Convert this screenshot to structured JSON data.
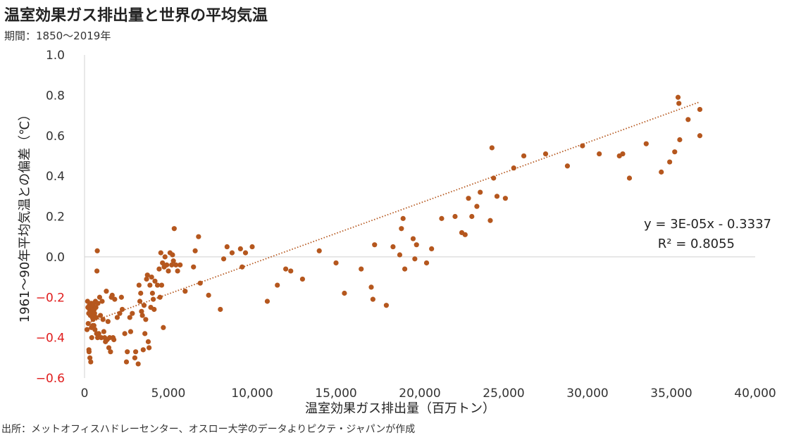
{
  "title": "温室効果ガス排出量と世界の平均気温",
  "subtitle": "期間：1850〜2019年",
  "source": "出所：メットオフィスハドレーセンター、オスロー大学のデータよりピクテ・ジャパンが作成",
  "chart_data": {
    "type": "scatter",
    "xlabel": "温室効果ガス排出量（百万トン）",
    "ylabel": "1961〜90年平均気温との偏差（℃）",
    "xlim": [
      0,
      40000
    ],
    "ylim": [
      -0.6,
      1.0
    ],
    "x_ticks": [
      0,
      5000,
      10000,
      15000,
      20000,
      25000,
      30000,
      35000,
      40000
    ],
    "x_tick_labels": [
      "0",
      "5,000",
      "10,000",
      "15,000",
      "20,000",
      "25,000",
      "30,000",
      "35,000",
      "40,000"
    ],
    "y_ticks": [
      1.0,
      0.8,
      0.6,
      0.4,
      0.2,
      0.0,
      -0.2,
      -0.4,
      -0.6
    ],
    "y_tick_labels": [
      "1.0",
      "0.8",
      "0.6",
      "0.4",
      "0.2",
      "0.0",
      "−0.2",
      "−0.4",
      "−0.6"
    ],
    "grid": "horizontal zero line only",
    "point_color": "#b5571e",
    "negative_tick_color": "#e01e1e",
    "trendline": {
      "style": "dotted",
      "slope": 3e-05,
      "intercept": -0.3337,
      "equation": "y = 3E-05x - 0.3337",
      "r2": "R² = 0.8055",
      "x_range": [
        200,
        36700
      ]
    },
    "points": [
      [
        150,
        -0.36
      ],
      [
        180,
        -0.22
      ],
      [
        200,
        -0.25
      ],
      [
        220,
        -0.33
      ],
      [
        250,
        -0.28
      ],
      [
        260,
        -0.46
      ],
      [
        270,
        -0.47
      ],
      [
        290,
        -0.24
      ],
      [
        300,
        -0.26
      ],
      [
        320,
        -0.5
      ],
      [
        330,
        -0.24
      ],
      [
        350,
        -0.29
      ],
      [
        360,
        -0.26
      ],
      [
        370,
        -0.52
      ],
      [
        380,
        -0.27
      ],
      [
        400,
        -0.23
      ],
      [
        410,
        -0.35
      ],
      [
        420,
        -0.28
      ],
      [
        430,
        -0.4
      ],
      [
        450,
        -0.24
      ],
      [
        460,
        -0.27
      ],
      [
        470,
        -0.3
      ],
      [
        480,
        -0.24
      ],
      [
        490,
        -0.34
      ],
      [
        500,
        -0.25
      ],
      [
        510,
        -0.31
      ],
      [
        520,
        -0.26
      ],
      [
        540,
        -0.23
      ],
      [
        560,
        -0.34
      ],
      [
        580,
        -0.26
      ],
      [
        600,
        -0.28
      ],
      [
        620,
        -0.36
      ],
      [
        650,
        -0.22
      ],
      [
        680,
        -0.25
      ],
      [
        700,
        -0.3
      ],
      [
        720,
        -0.38
      ],
      [
        740,
        -0.07
      ],
      [
        760,
        0.03
      ],
      [
        780,
        -0.4
      ],
      [
        800,
        -0.23
      ],
      [
        850,
        -0.38
      ],
      [
        900,
        -0.2
      ],
      [
        950,
        -0.29
      ],
      [
        1000,
        -0.4
      ],
      [
        1050,
        -0.22
      ],
      [
        1100,
        -0.31
      ],
      [
        1150,
        -0.37
      ],
      [
        1200,
        -0.4
      ],
      [
        1250,
        -0.42
      ],
      [
        1300,
        -0.17
      ],
      [
        1350,
        -0.41
      ],
      [
        1400,
        -0.32
      ],
      [
        1450,
        -0.45
      ],
      [
        1500,
        -0.4
      ],
      [
        1550,
        -0.47
      ],
      [
        1600,
        -0.2
      ],
      [
        1650,
        -0.19
      ],
      [
        1700,
        -0.4
      ],
      [
        1750,
        -0.41
      ],
      [
        1800,
        -0.21
      ],
      [
        1950,
        -0.3
      ],
      [
        2100,
        -0.28
      ],
      [
        2200,
        -0.2
      ],
      [
        2250,
        -0.26
      ],
      [
        2400,
        -0.38
      ],
      [
        2500,
        -0.52
      ],
      [
        2550,
        -0.47
      ],
      [
        2700,
        -0.3
      ],
      [
        2750,
        -0.37
      ],
      [
        2850,
        -0.28
      ],
      [
        3000,
        -0.5
      ],
      [
        3050,
        -0.47
      ],
      [
        3200,
        -0.53
      ],
      [
        3250,
        -0.14
      ],
      [
        3300,
        -0.22
      ],
      [
        3350,
        -0.18
      ],
      [
        3400,
        -0.27
      ],
      [
        3450,
        -0.29
      ],
      [
        3500,
        -0.46
      ],
      [
        3550,
        -0.24
      ],
      [
        3600,
        -0.38
      ],
      [
        3650,
        -0.31
      ],
      [
        3700,
        -0.11
      ],
      [
        3750,
        -0.09
      ],
      [
        3800,
        -0.42
      ],
      [
        3850,
        -0.45
      ],
      [
        3900,
        -0.14
      ],
      [
        3950,
        -0.25
      ],
      [
        4000,
        -0.1
      ],
      [
        4050,
        -0.18
      ],
      [
        4100,
        -0.21
      ],
      [
        4150,
        -0.26
      ],
      [
        4200,
        -0.12
      ],
      [
        4350,
        -0.14
      ],
      [
        4450,
        -0.06
      ],
      [
        4500,
        -0.2
      ],
      [
        4550,
        0.02
      ],
      [
        4600,
        -0.14
      ],
      [
        4650,
        -0.03
      ],
      [
        4700,
        -0.35
      ],
      [
        4750,
        -0.05
      ],
      [
        4800,
        -0.0
      ],
      [
        4900,
        -0.04
      ],
      [
        5000,
        -0.07
      ],
      [
        5100,
        0.02
      ],
      [
        5200,
        -0.04
      ],
      [
        5250,
        0.01
      ],
      [
        5300,
        -0.02
      ],
      [
        5350,
        0.14
      ],
      [
        5450,
        -0.04
      ],
      [
        5550,
        -0.07
      ],
      [
        5700,
        -0.04
      ],
      [
        6000,
        -0.17
      ],
      [
        6500,
        -0.05
      ],
      [
        6600,
        0.03
      ],
      [
        6800,
        0.1
      ],
      [
        6900,
        -0.13
      ],
      [
        7400,
        -0.19
      ],
      [
        8100,
        -0.26
      ],
      [
        8300,
        -0.01
      ],
      [
        8500,
        0.05
      ],
      [
        8800,
        0.02
      ],
      [
        9300,
        0.04
      ],
      [
        9400,
        -0.05
      ],
      [
        9600,
        0.02
      ],
      [
        10000,
        0.05
      ],
      [
        10900,
        -0.22
      ],
      [
        11500,
        -0.14
      ],
      [
        12000,
        -0.06
      ],
      [
        12300,
        -0.07
      ],
      [
        13000,
        -0.11
      ],
      [
        14000,
        0.03
      ],
      [
        15000,
        -0.03
      ],
      [
        15500,
        -0.18
      ],
      [
        16500,
        -0.06
      ],
      [
        17100,
        -0.15
      ],
      [
        17200,
        -0.21
      ],
      [
        17300,
        0.06
      ],
      [
        18000,
        -0.24
      ],
      [
        18400,
        0.05
      ],
      [
        18800,
        0.01
      ],
      [
        18900,
        0.14
      ],
      [
        19000,
        0.19
      ],
      [
        19100,
        -0.06
      ],
      [
        19600,
        0.09
      ],
      [
        19700,
        -0.01
      ],
      [
        19800,
        0.06
      ],
      [
        20400,
        -0.03
      ],
      [
        20700,
        0.04
      ],
      [
        21300,
        0.19
      ],
      [
        22100,
        0.2
      ],
      [
        22500,
        0.12
      ],
      [
        22700,
        0.11
      ],
      [
        22900,
        0.29
      ],
      [
        23100,
        0.2
      ],
      [
        23400,
        0.25
      ],
      [
        23600,
        0.32
      ],
      [
        24200,
        0.18
      ],
      [
        24300,
        0.54
      ],
      [
        24400,
        0.39
      ],
      [
        24600,
        0.3
      ],
      [
        25100,
        0.29
      ],
      [
        25600,
        0.44
      ],
      [
        26200,
        0.5
      ],
      [
        27500,
        0.51
      ],
      [
        28800,
        0.45
      ],
      [
        29700,
        0.55
      ],
      [
        30700,
        0.51
      ],
      [
        31900,
        0.5
      ],
      [
        32100,
        0.51
      ],
      [
        32500,
        0.39
      ],
      [
        33500,
        0.56
      ],
      [
        34400,
        0.42
      ],
      [
        34900,
        0.47
      ],
      [
        35200,
        0.52
      ],
      [
        35400,
        0.79
      ],
      [
        35450,
        0.76
      ],
      [
        35500,
        0.58
      ],
      [
        36000,
        0.68
      ],
      [
        36700,
        0.6
      ],
      [
        36700,
        0.73
      ]
    ]
  }
}
